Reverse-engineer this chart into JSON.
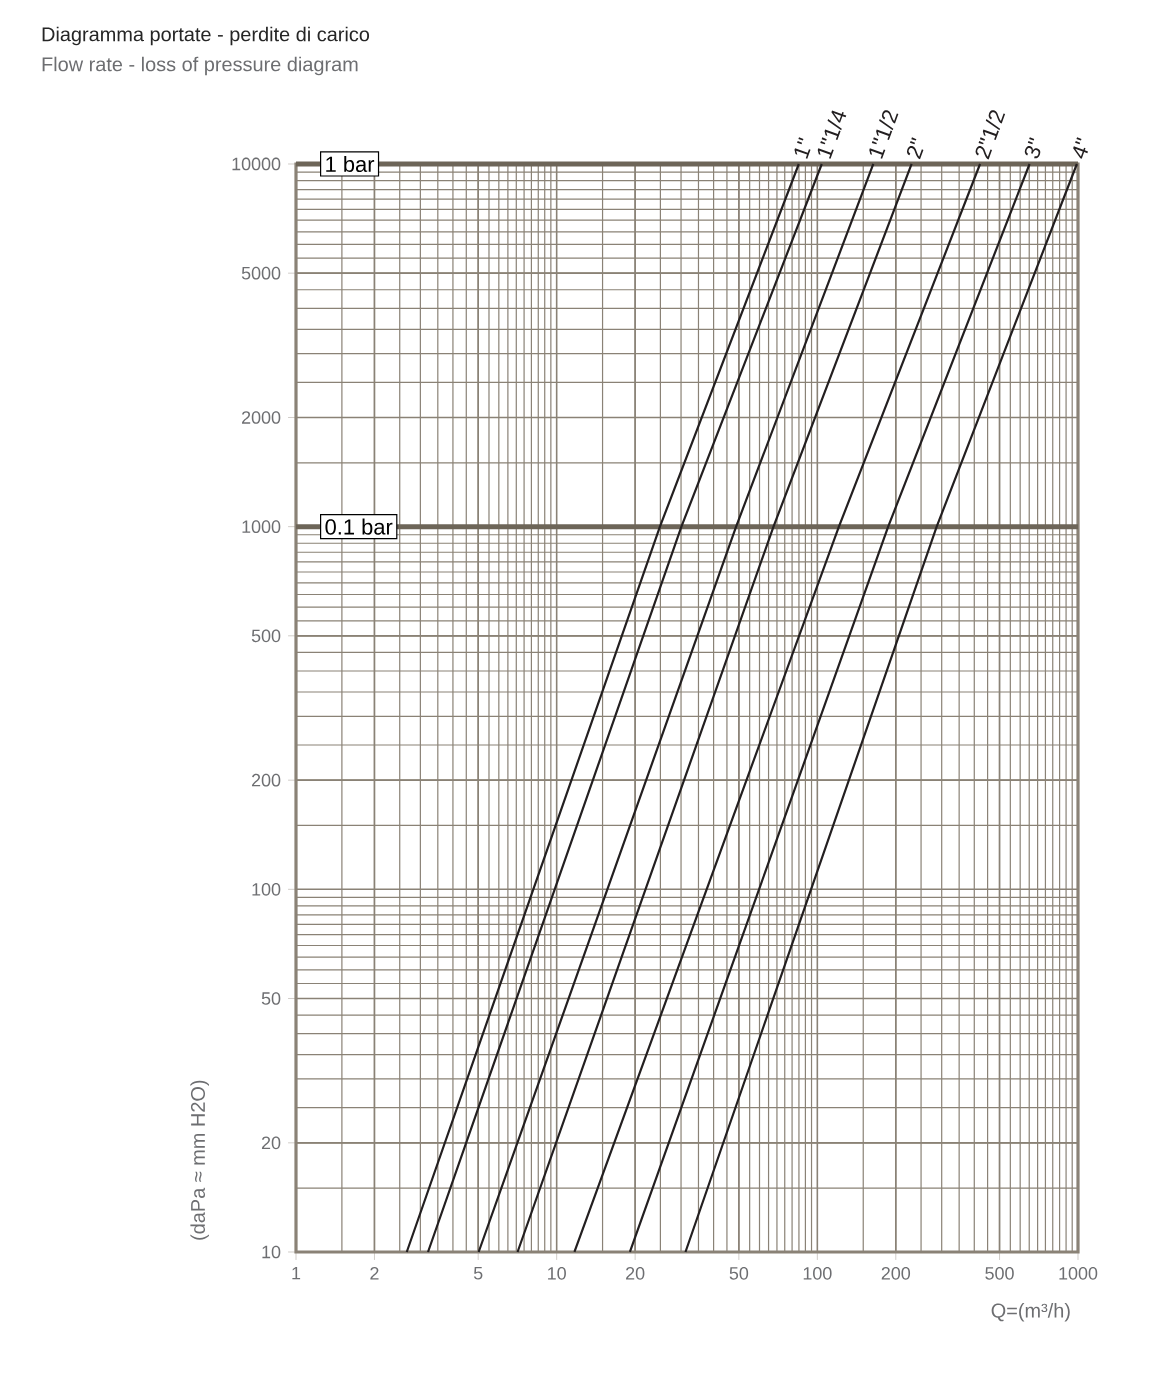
{
  "chart_data": {
    "type": "line",
    "title": "Diagramma portate - perdite di carico",
    "subtitle": "Flow rate - loss of pressure diagram",
    "xlabel": "Q=(m³/h)",
    "ylabel": "(daPa ≈ mm H2O)",
    "series": [
      {
        "name": "1\"",
        "color": "#231f20",
        "x": [
          2.66,
          24.9,
          84.9
        ],
        "values": [
          10,
          1000,
          10000
        ]
      },
      {
        "name": "1\"1/4",
        "color": "#231f20",
        "x": [
          3.21,
          30.1,
          104
        ],
        "values": [
          10,
          1000,
          10000
        ]
      },
      {
        "name": "1\"1/2",
        "color": "#231f20",
        "x": [
          5.02,
          48.8,
          164
        ],
        "values": [
          10,
          1000,
          10000
        ]
      },
      {
        "name": "2\"",
        "color": "#231f20",
        "x": [
          7.08,
          67.9,
          230
        ],
        "values": [
          10,
          1000,
          10000
        ]
      },
      {
        "name": "2\"1/2",
        "color": "#231f20",
        "x": [
          11.7,
          121,
          421
        ],
        "values": [
          10,
          1000,
          10000
        ]
      },
      {
        "name": "3\"",
        "color": "#231f20",
        "x": [
          19.1,
          187,
          652
        ],
        "values": [
          10,
          1000,
          10000
        ]
      },
      {
        "name": "4\"",
        "color": "#231f20",
        "x": [
          31.2,
          287,
          990
        ],
        "values": [
          10,
          1000,
          10000
        ]
      }
    ],
    "xlim": [
      1,
      1000
    ],
    "ylim": [
      10,
      10000
    ],
    "xticks": [
      1,
      2,
      5,
      10,
      20,
      50,
      100,
      200,
      500,
      1000
    ],
    "yticks": [
      10,
      20,
      50,
      100,
      200,
      500,
      1000,
      2000,
      5000,
      10000
    ],
    "log": "xy",
    "grid": true,
    "ref_lines": [
      {
        "axis": "y",
        "value": 10000,
        "label": "1 bar",
        "color": "#6d6558"
      },
      {
        "axis": "y",
        "value": 1000,
        "label": "0.1 bar",
        "color": "#6d6558"
      }
    ]
  }
}
